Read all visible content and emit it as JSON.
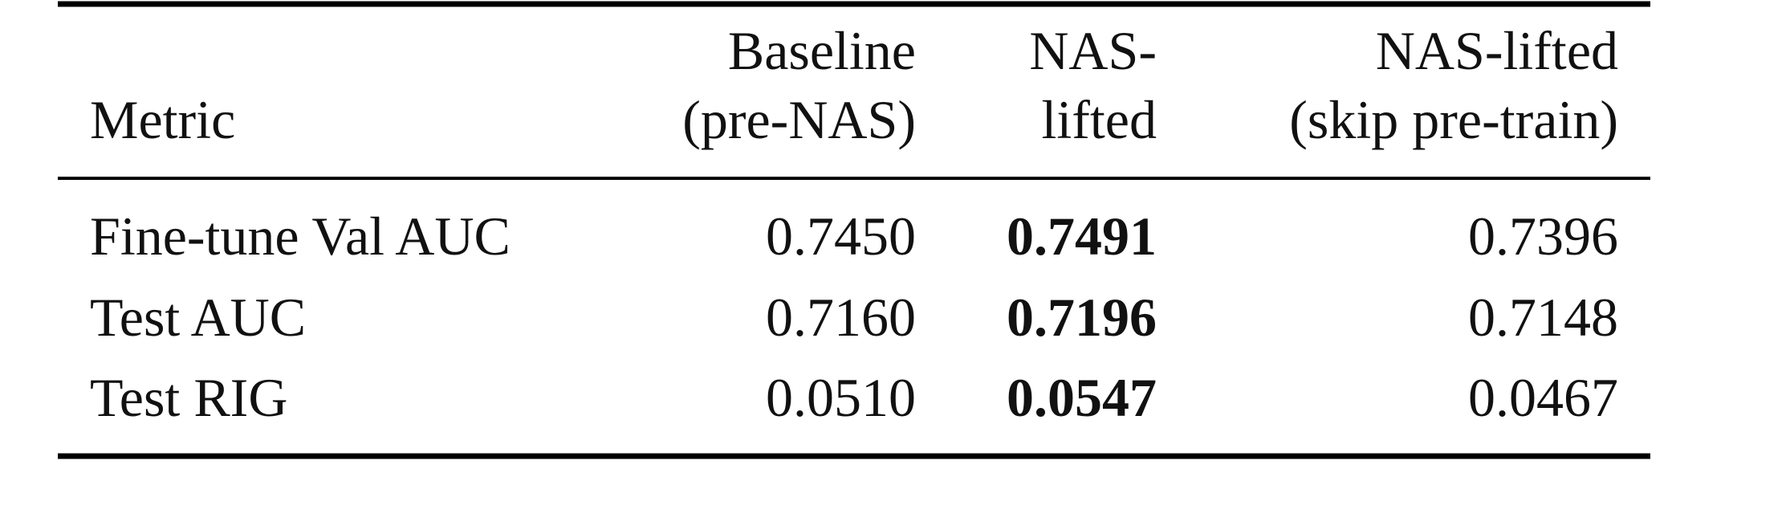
{
  "table": {
    "header": [
      [
        "Metric"
      ],
      [
        "Baseline",
        "(pre-NAS)"
      ],
      [
        "NAS-",
        "lifted"
      ],
      [
        "NAS-lifted",
        "(skip pre-train)"
      ]
    ],
    "rows": [
      [
        "Fine-tune Val AUC",
        "0.7450",
        "0.7491",
        "0.7396"
      ],
      [
        "Test AUC",
        "0.7160",
        "0.7196",
        "0.7148"
      ],
      [
        "Test RIG",
        "0.0510",
        "0.0547",
        "0.0467"
      ]
    ],
    "bold_column": 2
  }
}
